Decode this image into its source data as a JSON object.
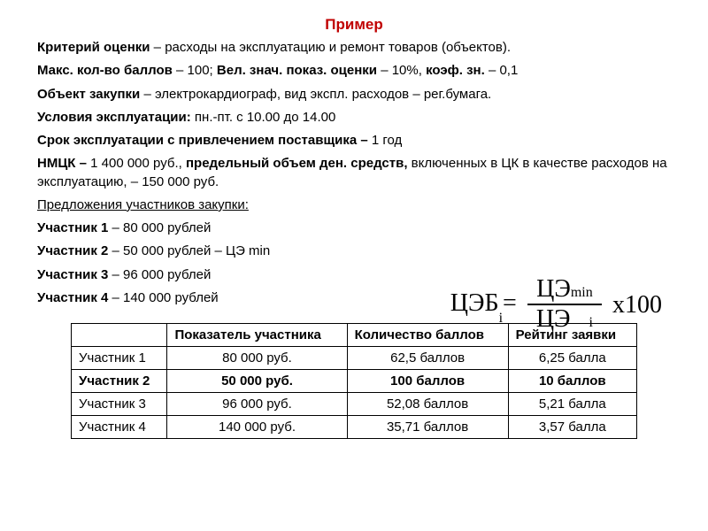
{
  "title": "Пример",
  "line1_label": "Критерий оценки",
  "line1_rest": " – расходы на эксплуатацию и ремонт товаров (объектов).",
  "line2_a": "Макс. кол-во баллов",
  "line2_a_v": " – 100; ",
  "line2_b": "Вел. знач. показ. оценки",
  "line2_b_v": " – 10%, ",
  "line2_c": "коэф. зн.",
  "line2_c_v": " – 0,1",
  "line3_a": "Объект закупки",
  "line3_rest": " – электрокардиограф, вид экспл. расходов – рег.бумага.",
  "line4_a": "Условия эксплуатации:",
  "line4_rest": " пн.-пт. с 10.00 до 14.00",
  "line5_a": "Срок эксплуатации с привлечением поставщика –",
  "line5_rest": " 1 год",
  "line6_a": "НМЦК –",
  "line6_a_v": " 1 400 000 руб., ",
  "line6_b": "предельный объем ден. средств,",
  "line6_rest": " включенных  в ЦК в качестве расходов на эксплуатацию, – 150 000 руб.",
  "offers_title": "Предложения участников закупки:",
  "p1_a": "Участник 1",
  "p1_v": " – 80 000 рублей",
  "p2_a": "Участник 2",
  "p2_v": " – 50 000 рублей – ЦЭ min",
  "p3_a": "Участник 3",
  "p3_v": " – 96 000 рублей",
  "p4_a": "Участник 4",
  "p4_v": " – 140 000 рублей",
  "formula": {
    "lhs_main": "ЦЭБ",
    "lhs_sub": "i",
    "eq": "=",
    "num_main": "ЦЭ",
    "num_sub": "min",
    "den_main": "ЦЭ",
    "den_sub": "i",
    "tail": "х100"
  },
  "table": {
    "col0": "",
    "col1": "Показатель участника",
    "col2": "Количество баллов",
    "col3": "Рейтинг заявки",
    "rows": [
      {
        "name": "Участник 1",
        "indicator": "80 000 руб.",
        "points": "62,5 баллов",
        "rating": "6,25 балла",
        "bold": false
      },
      {
        "name": "Участник 2",
        "indicator": "50 000 руб.",
        "points": "100 баллов",
        "rating": "10 баллов",
        "bold": true
      },
      {
        "name": "Участник 3",
        "indicator": "96 000 руб.",
        "points": "52,08 баллов",
        "rating": "5,21 балла",
        "bold": false
      },
      {
        "name": "Участник 4",
        "indicator": "140 000 руб.",
        "points": "35,71 баллов",
        "rating": "3,57 балла",
        "bold": false
      }
    ]
  }
}
